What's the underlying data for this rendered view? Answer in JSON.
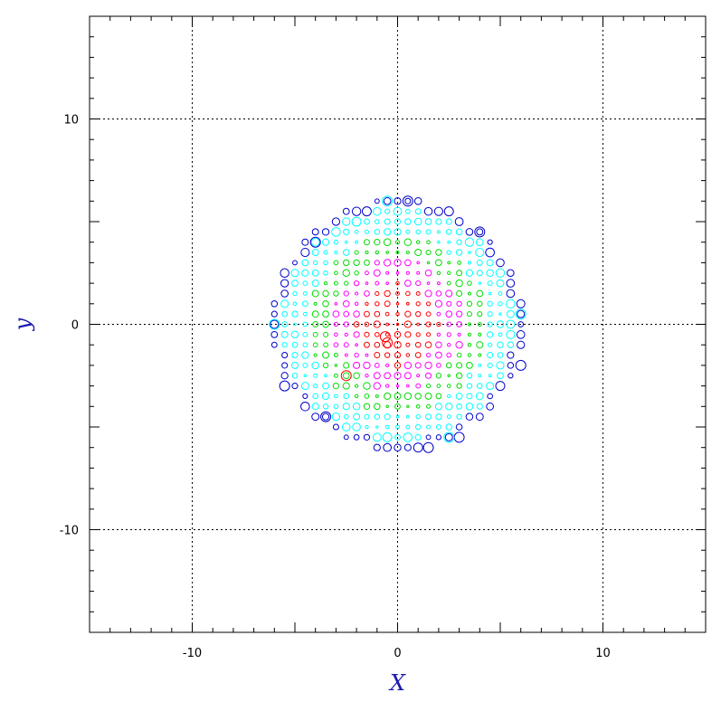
{
  "chart_data": {
    "type": "scatter",
    "xlabel": "X",
    "ylabel": "y",
    "xlim": [
      -15,
      15
    ],
    "ylim": [
      -15,
      15
    ],
    "x_ticks": [
      -10,
      0,
      10
    ],
    "y_ticks": [
      -10,
      0,
      10
    ],
    "x_tick_labels": [
      "-10",
      "0",
      "10"
    ],
    "y_tick_labels": [
      "-10",
      "0",
      "10"
    ],
    "minor_tick_step": 1,
    "grid": true,
    "grid_lines": [
      -10,
      0,
      10
    ],
    "marker": "open-circle",
    "grid_spacing": 0.5,
    "disk_radius": 6.1,
    "colors": {
      "inner": "#ff0000",
      "middle": "#ff00ff",
      "outer_middle": "#00dd00",
      "edge": "#00ffff",
      "rim": "#0000cc"
    },
    "color_bands_by_radius": [
      {
        "max_r": 2.0,
        "color": "#ff0000"
      },
      {
        "max_r": 3.2,
        "color": "#ff00ff"
      },
      {
        "max_r": 4.3,
        "color": "#00dd00"
      },
      {
        "max_r": 5.7,
        "color": "#00ffff"
      },
      {
        "max_r": 6.2,
        "color": "#0000cc"
      }
    ],
    "highlighted_points": [
      {
        "x": -0.6,
        "y": -0.6,
        "color": "#ff0000"
      },
      {
        "x": -0.5,
        "y": -0.9,
        "color": "#ff0000"
      },
      {
        "x": -2.5,
        "y": -2.5,
        "color": "#ff0000"
      },
      {
        "x": -4.0,
        "y": 4.0,
        "color": "#0000cc"
      },
      {
        "x": 4.0,
        "y": 4.5,
        "color": "#0000cc"
      },
      {
        "x": -5.5,
        "y": -3.0,
        "color": "#0000cc"
      },
      {
        "x": 6.0,
        "y": -2.0,
        "color": "#0000cc"
      },
      {
        "x": 0.5,
        "y": 6.0,
        "color": "#0000cc"
      },
      {
        "x": 1.5,
        "y": -6.0,
        "color": "#0000cc"
      },
      {
        "x": -3.5,
        "y": -4.5,
        "color": "#0000cc"
      },
      {
        "x": 3.0,
        "y": -5.5,
        "color": "#0000cc"
      },
      {
        "x": -6.0,
        "y": 0.0,
        "color": "#00ffff"
      },
      {
        "x": 6.0,
        "y": 0.5,
        "color": "#00ffff"
      },
      {
        "x": -0.5,
        "y": 6.0,
        "color": "#00ffff"
      },
      {
        "x": 2.5,
        "y": -5.5,
        "color": "#00ffff"
      }
    ]
  }
}
